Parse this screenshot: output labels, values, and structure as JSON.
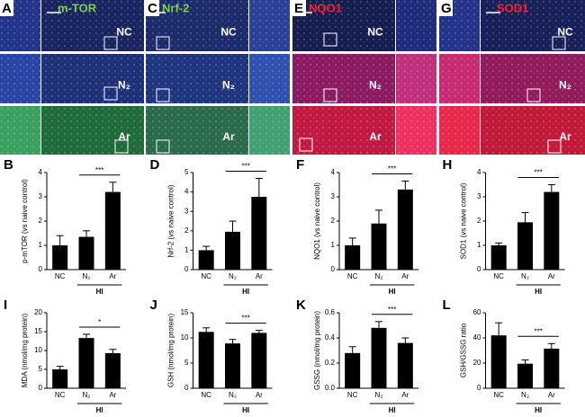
{
  "image_panels": [
    {
      "letter": "A",
      "stain": "m-TOR",
      "stain_color": "#7fd04e"
    },
    {
      "letter": "C",
      "stain": "Nrf-2",
      "stain_color": "#7fd04e"
    },
    {
      "letter": "E",
      "stain": "NQO1",
      "stain_color": "#ff2030"
    },
    {
      "letter": "G",
      "stain": "SOD1",
      "stain_color": "#ff2030"
    }
  ],
  "row_labels": [
    "NC",
    "N₂",
    "Ar"
  ],
  "chart_data": [
    {
      "type": "bar",
      "panel": "B",
      "ylabel": "p-mTOR (vs naive control)",
      "categories": [
        "NC",
        "N₂",
        "Ar"
      ],
      "group_label": "HI",
      "significance": "***",
      "values": [
        1.0,
        1.35,
        3.2
      ],
      "errors": [
        0.4,
        0.25,
        0.4
      ],
      "color": "#000000",
      "ylim": [
        0,
        4
      ],
      "yticks": [
        0,
        1,
        2,
        3,
        4
      ]
    },
    {
      "type": "bar",
      "panel": "D",
      "ylabel": "Nrf-2 (vs naive control)",
      "categories": [
        "NC",
        "N₂",
        "Ar"
      ],
      "group_label": "HI",
      "significance": "***",
      "values": [
        1.0,
        1.95,
        3.75
      ],
      "errors": [
        0.2,
        0.55,
        0.95
      ],
      "color": "#000000",
      "ylim": [
        0,
        5
      ],
      "yticks": [
        0,
        1,
        2,
        3,
        4,
        5
      ]
    },
    {
      "type": "bar",
      "panel": "F",
      "ylabel": "NQO1 (vs naive control)",
      "categories": [
        "NC",
        "N₂",
        "Ar"
      ],
      "group_label": "HI",
      "significance": "***",
      "values": [
        1.0,
        1.9,
        3.3
      ],
      "errors": [
        0.3,
        0.55,
        0.35
      ],
      "color": "#000000",
      "ylim": [
        0,
        4
      ],
      "yticks": [
        0,
        1,
        2,
        3,
        4
      ]
    },
    {
      "type": "bar",
      "panel": "H",
      "ylabel": "SOD1 (vs naive control)",
      "categories": [
        "NC",
        "N₂",
        "Ar"
      ],
      "group_label": "HI",
      "significance": "***",
      "values": [
        1.0,
        1.95,
        3.2
      ],
      "errors": [
        0.1,
        0.4,
        0.3
      ],
      "color": "#000000",
      "ylim": [
        0,
        4
      ],
      "yticks": [
        0,
        1,
        2,
        3,
        4
      ]
    },
    {
      "type": "bar",
      "panel": "I",
      "ylabel": "MDA (nmol/mg protein)",
      "categories": [
        "NC",
        "N₂",
        "Ar"
      ],
      "group_label": "HI",
      "significance": "*",
      "values": [
        5,
        13.3,
        9.3
      ],
      "errors": [
        0.8,
        1.0,
        1.0
      ],
      "color": "#000000",
      "ylim": [
        0,
        20
      ],
      "yticks": [
        0,
        5,
        10,
        15,
        20
      ]
    },
    {
      "type": "bar",
      "panel": "J",
      "ylabel": "GSH (nmol/mg protein)",
      "categories": [
        "NC",
        "N₂",
        "Ar"
      ],
      "group_label": "HI",
      "significance": "***",
      "values": [
        11.2,
        8.9,
        11.0
      ],
      "errors": [
        0.8,
        0.8,
        0.5
      ],
      "color": "#000000",
      "ylim": [
        0,
        15
      ],
      "yticks": [
        0,
        5,
        10,
        15
      ]
    },
    {
      "type": "bar",
      "panel": "K",
      "ylabel": "GSSG (nmol/mg protein)",
      "categories": [
        "NC",
        "N₂",
        "Ar"
      ],
      "group_label": "HI",
      "significance": "***",
      "values": [
        0.28,
        0.48,
        0.36
      ],
      "errors": [
        0.05,
        0.05,
        0.04
      ],
      "color": "#000000",
      "ylim": [
        0,
        0.6
      ],
      "yticks": [
        {
          "value": 0,
          "label": "0.0"
        },
        {
          "value": 0.2,
          "label": "0.2"
        },
        {
          "value": 0.4,
          "label": "0.4"
        },
        {
          "value": 0.6,
          "label": "0.6"
        }
      ]
    },
    {
      "type": "bar",
      "panel": "L",
      "ylabel": "GSH/GSSG ratio",
      "categories": [
        "NC",
        "N₂",
        "Ar"
      ],
      "group_label": "HI",
      "significance": "***",
      "values": [
        42,
        19.5,
        31.5
      ],
      "errors": [
        10,
        3,
        4
      ],
      "color": "#000000",
      "ylim": [
        0,
        60
      ],
      "yticks": [
        0,
        20,
        40,
        60
      ]
    }
  ]
}
